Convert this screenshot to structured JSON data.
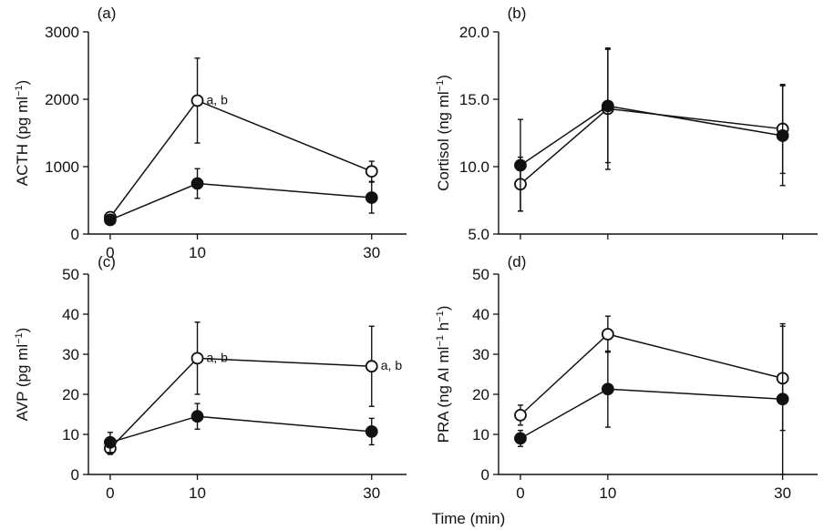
{
  "figure": {
    "xlabel": "Time (min)"
  },
  "chart_data": [
    {
      "type": "line",
      "panel": "(a)",
      "ylabel": "ACTH (pg ml",
      "ylabel_sup": "−1",
      "ylabel_tail": ")",
      "x": [
        0,
        10,
        30
      ],
      "xticks": [
        "0",
        "10",
        "30"
      ],
      "xlim": [
        -2.5,
        34
      ],
      "ylim": [
        0,
        3000
      ],
      "yticks": [
        "0",
        "1000",
        "2000",
        "3000"
      ],
      "ytick_values": [
        0,
        1000,
        2000,
        3000
      ],
      "grid": false,
      "series": [
        {
          "marker": "open-circle",
          "values": [
            250,
            1980,
            930
          ],
          "errors": [
            40,
            630,
            150
          ]
        },
        {
          "marker": "filled-circle",
          "values": [
            210,
            750,
            540
          ],
          "errors": [
            30,
            220,
            230
          ]
        }
      ],
      "annotations": [
        {
          "text": "a, b",
          "x": 10,
          "y": 1980
        }
      ]
    },
    {
      "type": "line",
      "panel": "(b)",
      "ylabel": "Cortisol (ng ml",
      "ylabel_sup": "−1",
      "ylabel_tail": ")",
      "x": [
        0,
        10,
        30
      ],
      "xticks": [],
      "xlim": [
        -2.5,
        34
      ],
      "ylim": [
        5.0,
        20.0
      ],
      "yticks": [
        "5.0",
        "10.0",
        "15.0",
        "20.0"
      ],
      "ytick_values": [
        5,
        10,
        15,
        20
      ],
      "grid": false,
      "series": [
        {
          "marker": "open-circle",
          "values": [
            8.7,
            14.3,
            12.8
          ],
          "errors": [
            2.0,
            4.5,
            3.3
          ]
        },
        {
          "marker": "filled-circle",
          "values": [
            10.1,
            14.5,
            12.3
          ],
          "errors": [
            3.4,
            4.2,
            3.7
          ]
        }
      ],
      "annotations": []
    },
    {
      "type": "line",
      "panel": "(c)",
      "ylabel": "AVP (pg ml",
      "ylabel_sup": "−1",
      "ylabel_tail": ")",
      "x": [
        0,
        10,
        30
      ],
      "xticks": [
        "0",
        "10",
        "30"
      ],
      "xlim": [
        -2.5,
        34
      ],
      "ylim": [
        0,
        50
      ],
      "yticks": [
        "0",
        "10",
        "20",
        "30",
        "40",
        "50"
      ],
      "ytick_values": [
        0,
        10,
        20,
        30,
        40,
        50
      ],
      "grid": false,
      "series": [
        {
          "marker": "open-circle",
          "values": [
            6.5,
            29,
            27
          ],
          "errors": [
            1.5,
            9,
            10
          ]
        },
        {
          "marker": "filled-circle",
          "values": [
            8,
            14.5,
            10.7
          ],
          "errors": [
            2.5,
            3.2,
            3.3
          ]
        }
      ],
      "annotations": [
        {
          "text": "a, b",
          "x": 10,
          "y": 29
        },
        {
          "text": "a, b",
          "x": 30,
          "y": 27
        }
      ]
    },
    {
      "type": "line",
      "panel": "(d)",
      "ylabel": "PRA (ng AI ml",
      "ylabel_sup": "−1",
      "ylabel_tail": " h",
      "ylabel_sup2": "−1",
      "ylabel_tail2": ")",
      "x": [
        0,
        10,
        30
      ],
      "xticks": [
        "0",
        "10",
        "30"
      ],
      "xlim": [
        -2.5,
        34
      ],
      "ylim": [
        0,
        50
      ],
      "yticks": [
        "0",
        "10",
        "20",
        "30",
        "40",
        "50"
      ],
      "ytick_values": [
        0,
        10,
        20,
        30,
        40,
        50
      ],
      "grid": false,
      "series": [
        {
          "marker": "open-circle",
          "values": [
            14.8,
            35,
            24
          ],
          "errors": [
            2.5,
            4.5,
            13
          ]
        },
        {
          "marker": "filled-circle",
          "values": [
            9,
            21.3,
            18.8
          ],
          "errors": [
            2.0,
            9.5,
            18.8
          ]
        }
      ],
      "annotations": []
    }
  ]
}
